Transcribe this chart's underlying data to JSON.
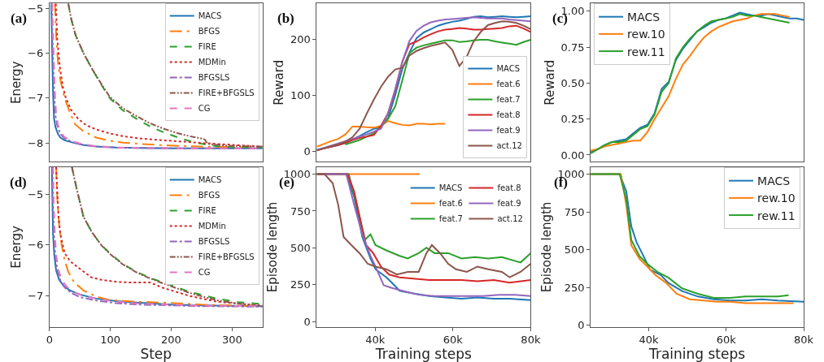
{
  "chart_data": [
    {
      "type": "line",
      "annotations": [
        "(a)"
      ],
      "ylabel": "Energy",
      "xlim": [
        0,
        350
      ],
      "ylim": [
        -8.42,
        -4.89
      ],
      "yticks": [
        -8,
        -7,
        -6,
        -5
      ],
      "tick_labels": "y",
      "legend": "top right",
      "series": [
        {
          "name": "MACS",
          "color": "#1f77b4",
          "line_style": "solid",
          "x": [
            3,
            4,
            5,
            6,
            7.5,
            10,
            14,
            18,
            25,
            38,
            55,
            77,
            110,
            143,
            200,
            270,
            350
          ],
          "values": [
            -4.9,
            -5.6,
            -6.3,
            -6.9,
            -7.45,
            -7.65,
            -7.8,
            -7.88,
            -7.94,
            -7.99,
            -8.04,
            -8.08,
            -8.1,
            -8.11,
            -8.12,
            -8.12,
            -8.12
          ]
        },
        {
          "name": "BFGS",
          "color": "#ff7f0e",
          "line_style": "longdashdot",
          "x": [
            9,
            11,
            14,
            18,
            25,
            33,
            42,
            55,
            77,
            100,
            121,
            150,
            187,
            250,
            350
          ],
          "values": [
            -4.9,
            -5.6,
            -6.2,
            -6.6,
            -7.0,
            -7.3,
            -7.58,
            -7.73,
            -7.88,
            -7.95,
            -7.99,
            -8.02,
            -8.05,
            -8.08,
            -8.1
          ]
        },
        {
          "name": "FIRE",
          "color": "#2ca02c",
          "line_style": "dashed",
          "x": [
            31,
            36,
            43,
            56,
            70,
            85,
            99,
            120,
            143,
            165,
            187,
            210,
            231,
            255,
            274,
            310,
            350
          ],
          "values": [
            -4.9,
            -5.25,
            -5.6,
            -6.0,
            -6.35,
            -6.7,
            -7.0,
            -7.27,
            -7.46,
            -7.63,
            -7.76,
            -7.87,
            -7.96,
            -8.03,
            -8.07,
            -8.1,
            -8.1
          ]
        },
        {
          "name": "MDMin",
          "color": "#d62728",
          "line_style": "dotted",
          "x": [
            10.5,
            13,
            17,
            22,
            27,
            35,
            47,
            60,
            77,
            100,
            121,
            150,
            187,
            230,
            274,
            350
          ],
          "values": [
            -4.9,
            -5.7,
            -6.3,
            -6.75,
            -7.0,
            -7.25,
            -7.46,
            -7.6,
            -7.7,
            -7.79,
            -7.85,
            -7.9,
            -7.94,
            -7.98,
            -8.02,
            -8.08
          ]
        },
        {
          "name": "BFGSLS",
          "color": "#9467bd",
          "line_style": "dashdot",
          "x": [
            4,
            5,
            6.5,
            8,
            10,
            13,
            18,
            25,
            38,
            55,
            77,
            110,
            150,
            250,
            350
          ],
          "values": [
            -4.9,
            -5.6,
            -6.3,
            -6.9,
            -7.4,
            -7.62,
            -7.8,
            -7.9,
            -7.98,
            -8.04,
            -8.08,
            -8.1,
            -8.11,
            -8.12,
            -8.12
          ]
        },
        {
          "name": "FIRE+BFGSLS",
          "color": "#8c564b",
          "line_style": "dashdotdot",
          "x": [
            31,
            36,
            43,
            56,
            70,
            85,
            99,
            120,
            143,
            165,
            187,
            210,
            231,
            250,
            255,
            260,
            290,
            350
          ],
          "values": [
            -4.9,
            -5.25,
            -5.6,
            -6.0,
            -6.35,
            -6.68,
            -6.97,
            -7.22,
            -7.4,
            -7.56,
            -7.68,
            -7.78,
            -7.85,
            -7.9,
            -7.92,
            -8.02,
            -8.06,
            -8.08
          ]
        },
        {
          "name": "CG",
          "color": "#e377c2",
          "line_style": "dashed",
          "x": [
            4.5,
            6,
            7.5,
            9,
            11,
            14,
            18,
            25,
            38,
            55,
            77,
            110,
            150,
            250,
            350
          ],
          "values": [
            -4.9,
            -5.6,
            -6.3,
            -6.9,
            -7.35,
            -7.6,
            -7.75,
            -7.87,
            -7.96,
            -8.03,
            -8.07,
            -8.1,
            -8.11,
            -8.12,
            -8.12
          ]
        }
      ]
    },
    {
      "type": "line",
      "annotations": [
        "(b)"
      ],
      "ylabel": "Reward",
      "categories": [
        null,
        null,
        null,
        null,
        null,
        null,
        null,
        null,
        null,
        null,
        null,
        null,
        null,
        null,
        null,
        null,
        null,
        null,
        null,
        null,
        null,
        null,
        null,
        null,
        null,
        null,
        null,
        null,
        null,
        null,
        null
      ],
      "ylim": [
        -19,
        264
      ],
      "yticks": [
        0,
        100,
        200
      ],
      "tick_labels": "y",
      "legend": "bottom right",
      "series": [
        {
          "name": "MACS",
          "color": "#1f77b4",
          "line_style": "solid",
          "values": [
            3,
            5,
            8,
            11,
            15,
            21,
            27,
            34,
            40,
            43,
            59,
            100,
            147,
            176,
            202,
            212,
            218,
            224,
            228,
            231,
            233,
            236,
            240,
            241,
            239,
            240,
            241,
            240,
            239,
            240,
            241
          ]
        },
        {
          "name": "feat.6",
          "color": "#ff7f0e",
          "line_style": "solid",
          "values": [
            8,
            13,
            18,
            22,
            30,
            44,
            44,
            43,
            42,
            45,
            54,
            50,
            47,
            46,
            49,
            49,
            48,
            49,
            49,
            null,
            null,
            null,
            null,
            null,
            null,
            null,
            null,
            null,
            null,
            null,
            null
          ]
        },
        {
          "name": "feat.7",
          "color": "#2ca02c",
          "line_style": "solid",
          "values": [
            null,
            null,
            null,
            null,
            12,
            16,
            20,
            26,
            32,
            45,
            58,
            80,
            127,
            175,
            185,
            189,
            192,
            195,
            198,
            198,
            195,
            196,
            198,
            199,
            199,
            196,
            194,
            192,
            190,
            195,
            199
          ]
        },
        {
          "name": "feat.8",
          "color": "#d62728",
          "line_style": "solid",
          "values": [
            2,
            5,
            8,
            11,
            15,
            20,
            24,
            26,
            29,
            45,
            68,
            108,
            160,
            191,
            196,
            203,
            209,
            214,
            217,
            218,
            220,
            219,
            217,
            217,
            218,
            219,
            220,
            223,
            224,
            219,
            213
          ]
        },
        {
          "name": "feat.9",
          "color": "#9467bd",
          "line_style": "solid",
          "values": [
            2,
            6,
            10,
            14,
            18,
            22,
            26,
            30,
            35,
            40,
            68,
            111,
            159,
            197,
            215,
            224,
            230,
            233,
            235,
            236,
            237,
            238,
            239,
            238,
            237,
            237,
            237,
            235,
            234,
            233,
            232
          ]
        },
        {
          "name": "act.12",
          "color": "#8c564b",
          "line_style": "solid",
          "values": [
            1,
            5,
            9,
            12,
            17,
            25,
            40,
            67,
            92,
            115,
            133,
            146,
            149,
            171,
            179,
            184,
            188,
            191,
            194,
            181,
            152,
            168,
            196,
            213,
            225,
            229,
            232,
            231,
            229,
            224,
            218
          ]
        }
      ]
    },
    {
      "type": "line",
      "annotations": [
        "(c)"
      ],
      "ylabel": "Reward",
      "categories": [
        null,
        null,
        null,
        null,
        null,
        null,
        null,
        null,
        null,
        null,
        null,
        null,
        null,
        null,
        null,
        null,
        null,
        null,
        null,
        null,
        null,
        null,
        null,
        null,
        null,
        null,
        null,
        null,
        null,
        null,
        null
      ],
      "ylim": [
        -0.048,
        1.055
      ],
      "yticks": [
        {
          "value": 0,
          "label": "0.00"
        },
        {
          "value": 0.25,
          "label": "0.25"
        },
        {
          "value": 0.5,
          "label": "0.50"
        },
        {
          "value": 0.75,
          "label": "0.75"
        },
        {
          "value": 1,
          "label": "1.00"
        }
      ],
      "tick_labels": "y",
      "legend": "top left",
      "series": [
        {
          "name": "MACS",
          "color": "#1f77b4",
          "line_style": "solid",
          "values": [
            0.02,
            0.04,
            0.07,
            0.09,
            0.1,
            0.11,
            0.15,
            0.19,
            0.21,
            0.29,
            0.46,
            0.51,
            0.66,
            0.74,
            0.8,
            0.86,
            0.89,
            0.92,
            0.94,
            0.95,
            0.97,
            0.99,
            0.98,
            0.97,
            0.97,
            0.98,
            0.97,
            0.96,
            0.95,
            0.95,
            0.94
          ]
        },
        {
          "name": "rew.10",
          "color": "#ff7f0e",
          "line_style": "solid",
          "values": [
            0.03,
            0.04,
            0.06,
            0.07,
            0.08,
            0.09,
            0.1,
            0.1,
            0.16,
            0.25,
            0.33,
            0.41,
            0.53,
            0.63,
            0.69,
            0.76,
            0.82,
            0.86,
            0.89,
            0.91,
            0.93,
            0.94,
            0.95,
            0.97,
            0.98,
            0.98,
            0.98,
            0.97,
            0.96,
            null,
            null
          ]
        },
        {
          "name": "rew.11",
          "color": "#2ca02c",
          "line_style": "solid",
          "values": [
            0.01,
            0.04,
            0.07,
            0.09,
            0.09,
            0.1,
            0.14,
            0.18,
            0.2,
            0.28,
            0.44,
            0.5,
            0.67,
            0.75,
            0.81,
            0.86,
            0.9,
            0.93,
            0.94,
            0.95,
            0.96,
            0.98,
            0.97,
            0.97,
            0.96,
            0.95,
            0.94,
            0.93,
            0.92,
            null,
            null
          ]
        }
      ]
    },
    {
      "type": "line",
      "annotations": [
        "(d)"
      ],
      "xlabel": "Step",
      "ylabel": "Energy",
      "xlim": [
        0,
        350
      ],
      "ylim": [
        -7.62,
        -4.46
      ],
      "xticks": [
        0,
        100,
        200,
        300
      ],
      "yticks": [
        -7,
        -6,
        -5
      ],
      "legend": "top right",
      "series": [
        {
          "name": "MACS",
          "color": "#1f77b4",
          "line_style": "solid",
          "x": [
            4,
            5,
            6,
            8,
            11,
            16,
            24,
            34,
            50,
            77,
            110,
            143,
            200,
            270,
            350
          ],
          "values": [
            -4.46,
            -5.2,
            -5.8,
            -6.2,
            -6.5,
            -6.69,
            -6.82,
            -6.9,
            -6.98,
            -7.06,
            -7.11,
            -7.14,
            -7.18,
            -7.2,
            -7.21
          ]
        },
        {
          "name": "BFGS",
          "color": "#ff7f0e",
          "line_style": "longdashdot",
          "x": [
            11,
            13,
            16,
            20,
            25,
            31,
            40,
            56,
            77,
            99,
            140,
            187,
            250,
            350
          ],
          "values": [
            -4.46,
            -5.1,
            -5.6,
            -6.0,
            -6.3,
            -6.53,
            -6.73,
            -6.9,
            -7.02,
            -7.09,
            -7.12,
            -7.14,
            -7.18,
            -7.21
          ]
        },
        {
          "name": "FIRE",
          "color": "#2ca02c",
          "line_style": "dashed",
          "x": [
            37,
            45,
            56,
            70,
            85,
            99,
            120,
            143,
            165,
            187,
            210,
            231,
            255,
            274,
            310,
            350
          ],
          "values": [
            -4.46,
            -4.9,
            -5.44,
            -5.75,
            -6.0,
            -6.16,
            -6.37,
            -6.53,
            -6.65,
            -6.74,
            -6.84,
            -6.93,
            -7.0,
            -7.06,
            -7.13,
            -7.17
          ]
        },
        {
          "name": "MDMin",
          "color": "#d62728",
          "line_style": "dotted",
          "x": [
            11,
            13,
            15,
            18,
            25,
            34,
            51,
            69,
            86,
            112,
            130,
            165,
            187,
            231,
            274,
            350
          ],
          "values": [
            -4.46,
            -5.0,
            -5.45,
            -5.79,
            -6.16,
            -6.32,
            -6.48,
            -6.64,
            -6.69,
            -6.73,
            -6.74,
            -6.74,
            -6.85,
            -7.01,
            -7.12,
            -7.2
          ]
        },
        {
          "name": "BFGSLS",
          "color": "#9467bd",
          "line_style": "dashdot",
          "x": [
            5,
            6,
            7.5,
            9.5,
            13,
            18,
            26,
            36,
            50,
            77,
            110,
            150,
            250,
            350
          ],
          "values": [
            -4.46,
            -5.2,
            -5.8,
            -6.2,
            -6.5,
            -6.7,
            -6.85,
            -6.95,
            -7.03,
            -7.1,
            -7.15,
            -7.18,
            -7.21,
            -7.22
          ]
        },
        {
          "name": "FIRE+BFGSLS",
          "color": "#8c564b",
          "line_style": "dashdotdot",
          "x": [
            37,
            45,
            56,
            70,
            85,
            99,
            120,
            143,
            165,
            187,
            210,
            231,
            255,
            274,
            310,
            350
          ],
          "values": [
            -4.46,
            -4.9,
            -5.44,
            -5.75,
            -6.0,
            -6.17,
            -6.38,
            -6.54,
            -6.66,
            -6.76,
            -6.86,
            -6.95,
            -7.03,
            -7.09,
            -7.16,
            -7.21
          ]
        },
        {
          "name": "CG",
          "color": "#e377c2",
          "line_style": "dashed",
          "x": [
            6,
            7,
            9,
            11,
            15,
            20,
            28,
            38,
            55,
            80,
            110,
            150,
            250,
            350
          ],
          "values": [
            -4.46,
            -5.2,
            -5.8,
            -6.2,
            -6.5,
            -6.68,
            -6.82,
            -6.92,
            -7.0,
            -7.07,
            -7.12,
            -7.16,
            -7.2,
            -7.21
          ]
        }
      ]
    },
    {
      "type": "line",
      "annotations": [
        "(e)"
      ],
      "xlabel": "Training steps",
      "ylabel": "Episode length",
      "xlim": [
        25000,
        80000
      ],
      "ylim": [
        -36,
        1047
      ],
      "xticks": [
        {
          "value": 40000,
          "label": "40k"
        },
        {
          "value": 60000,
          "label": "60k"
        },
        {
          "value": 80000,
          "label": "80k"
        }
      ],
      "yticks": [
        0,
        250,
        500,
        750,
        1000
      ],
      "legend": "top right",
      "series": [
        {
          "name": "MACS",
          "color": "#1f77b4",
          "line_style": "solid",
          "x": [
            25000,
            32600,
            34600,
            36700,
            38800,
            40100,
            42900,
            44300,
            46300,
            49800,
            53900,
            58100,
            62200,
            66300,
            70500,
            74600,
            80000
          ],
          "values": [
            1000,
            1000,
            847,
            574,
            428,
            355,
            300,
            264,
            209,
            191,
            173,
            164,
            155,
            164,
            155,
            155,
            146
          ]
        },
        {
          "name": "feat.6",
          "color": "#ff7f0e",
          "line_style": "solid",
          "x": [
            25000,
            51500
          ],
          "values": [
            1000,
            1000
          ]
        },
        {
          "name": "feat.7",
          "color": "#2ca02c",
          "line_style": "solid",
          "x": [
            25000,
            33200,
            35300,
            37400,
            38800,
            40100,
            42900,
            46300,
            48400,
            51200,
            53200,
            55300,
            58800,
            62200,
            65700,
            69100,
            72600,
            77400,
            80000
          ],
          "values": [
            1000,
            1000,
            792,
            556,
            592,
            519,
            483,
            446,
            428,
            464,
            501,
            464,
            464,
            428,
            437,
            428,
            437,
            401,
            464
          ]
        },
        {
          "name": "feat.8",
          "color": "#d62728",
          "line_style": "solid",
          "x": [
            25000,
            32900,
            34600,
            36700,
            37700,
            39500,
            41500,
            43600,
            46300,
            49800,
            53900,
            58100,
            62200,
            66300,
            70500,
            74600,
            80000
          ],
          "values": [
            1000,
            1000,
            883,
            628,
            519,
            464,
            373,
            319,
            300,
            291,
            282,
            282,
            282,
            273,
            282,
            264,
            282
          ]
        },
        {
          "name": "feat.9",
          "color": "#9467bd",
          "line_style": "solid",
          "x": [
            25000,
            32600,
            34600,
            36700,
            38800,
            40100,
            42200,
            44300,
            47000,
            51200,
            55300,
            59400,
            63600,
            67700,
            71900,
            76000,
            80000
          ],
          "values": [
            1000,
            1000,
            792,
            592,
            446,
            373,
            246,
            228,
            209,
            182,
            173,
            173,
            173,
            173,
            182,
            182,
            173
          ]
        },
        {
          "name": "act.12",
          "color": "#8c564b",
          "line_style": "solid",
          "x": [
            25000,
            27000,
            29100,
            30500,
            31900,
            33900,
            36000,
            38100,
            40100,
            42900,
            45600,
            48400,
            51200,
            53200,
            54600,
            56700,
            58800,
            60800,
            63600,
            66300,
            69100,
            72600,
            74600,
            77400,
            80000
          ],
          "values": [
            1000,
            1000,
            938,
            792,
            574,
            519,
            464,
            392,
            373,
            355,
            319,
            337,
            337,
            464,
            519,
            464,
            392,
            355,
            337,
            373,
            355,
            337,
            300,
            337,
            392
          ]
        }
      ]
    },
    {
      "type": "line",
      "annotations": [
        "(f)"
      ],
      "xlabel": "Training steps",
      "ylabel": "Episode length",
      "xlim": [
        25000,
        80000
      ],
      "ylim": [
        -12,
        1046
      ],
      "xticks": [
        {
          "value": 40000,
          "label": "40k"
        },
        {
          "value": 60000,
          "label": "60k"
        },
        {
          "value": 80000,
          "label": "80k"
        }
      ],
      "yticks": [
        0,
        250,
        500,
        750,
        1000
      ],
      "legend": "top right",
      "series": [
        {
          "name": "MACS",
          "color": "#1f77b4",
          "line_style": "solid",
          "x": [
            25000,
            32500,
            34200,
            35500,
            36900,
            39000,
            40300,
            43100,
            45100,
            48600,
            52700,
            56800,
            61000,
            65000,
            69200,
            73300,
            80000
          ],
          "values": [
            1000,
            1000,
            886,
            654,
            546,
            439,
            368,
            332,
            279,
            225,
            189,
            171,
            163,
            163,
            171,
            163,
            154
          ]
        },
        {
          "name": "rew.10",
          "color": "#ff7f0e",
          "line_style": "solid",
          "x": [
            25000,
            32800,
            34200,
            35500,
            37600,
            39700,
            41700,
            44500,
            47200,
            50600,
            54100,
            57500,
            61000,
            65000,
            69200,
            73300,
            77400
          ],
          "values": [
            1000,
            1000,
            796,
            529,
            439,
            386,
            332,
            279,
            207,
            171,
            163,
            154,
            154,
            145,
            145,
            145,
            145
          ]
        },
        {
          "name": "rew.11",
          "color": "#2ca02c",
          "line_style": "solid",
          "x": [
            25000,
            32500,
            34200,
            35500,
            37600,
            39700,
            42400,
            45100,
            48600,
            52700,
            56800,
            61000,
            65000,
            69200,
            73300,
            76100
          ],
          "values": [
            1000,
            1000,
            832,
            564,
            457,
            404,
            350,
            314,
            243,
            207,
            180,
            180,
            189,
            189,
            189,
            198
          ]
        }
      ]
    }
  ]
}
